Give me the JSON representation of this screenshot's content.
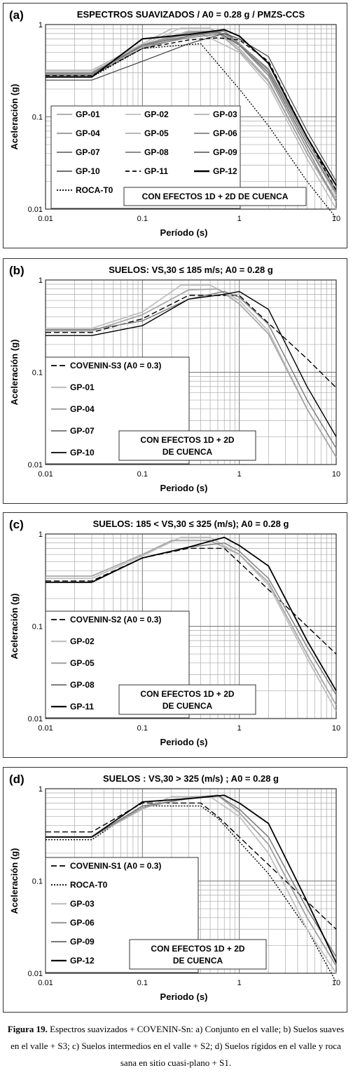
{
  "chart_data": [
    {
      "type": "line",
      "panel_label": "(a)",
      "title": "ESPECTROS SUAVIZADOS  / A0 = 0.28 g /  PMZS-CCS",
      "xlabel": "Período (s)",
      "ylabel": "Aceleración (g)",
      "xscale": "log",
      "yscale": "log",
      "xlim": [
        0.01,
        10
      ],
      "ylim": [
        0.01,
        1
      ],
      "xticks": [
        "0.01",
        "0.1",
        "1",
        "10"
      ],
      "yticks": [
        "1",
        "0.1",
        "0.01"
      ],
      "grid": true,
      "annotation": "CON EFECTOS 1D +  2D DE CUENCA",
      "legend_placement": "lower-left",
      "series": [
        {
          "name": "GP-01",
          "color": "#b0b0b0",
          "dash": "solid",
          "width": 1.6,
          "x": [
            0.01,
            0.03,
            0.1,
            0.3,
            0.6,
            1,
            2,
            5,
            10
          ],
          "y": [
            0.3,
            0.3,
            0.6,
            0.85,
            0.85,
            0.55,
            0.25,
            0.04,
            0.013
          ]
        },
        {
          "name": "GP-02",
          "color": "#c8c8c8",
          "dash": "solid",
          "width": 1.6,
          "x": [
            0.01,
            0.03,
            0.1,
            0.25,
            0.5,
            1,
            2,
            5,
            10
          ],
          "y": [
            0.31,
            0.31,
            0.6,
            0.92,
            0.92,
            0.6,
            0.28,
            0.045,
            0.012
          ]
        },
        {
          "name": "GP-03",
          "color": "#bcbcbc",
          "dash": "solid",
          "width": 1.6,
          "x": [
            0.01,
            0.03,
            0.1,
            0.2,
            0.4,
            1,
            2,
            5,
            10
          ],
          "y": [
            0.3,
            0.3,
            0.55,
            0.8,
            0.8,
            0.5,
            0.22,
            0.035,
            0.01
          ]
        },
        {
          "name": "GP-04",
          "color": "#a0a0a0",
          "dash": "solid",
          "width": 1.6,
          "x": [
            0.01,
            0.03,
            0.1,
            0.3,
            0.6,
            1,
            2,
            5,
            10
          ],
          "y": [
            0.29,
            0.29,
            0.58,
            0.8,
            0.82,
            0.52,
            0.24,
            0.04,
            0.012
          ]
        },
        {
          "name": "GP-05",
          "color": "#b8b8b8",
          "dash": "solid",
          "width": 1.6,
          "x": [
            0.01,
            0.03,
            0.1,
            0.2,
            0.5,
            1,
            2,
            5,
            10
          ],
          "y": [
            0.32,
            0.32,
            0.62,
            0.9,
            0.9,
            0.62,
            0.3,
            0.05,
            0.014
          ]
        },
        {
          "name": "GP-06",
          "color": "#909090",
          "dash": "solid",
          "width": 1.6,
          "x": [
            0.01,
            0.03,
            0.1,
            0.3,
            0.6,
            1,
            2,
            5,
            10
          ],
          "y": [
            0.3,
            0.3,
            0.6,
            0.82,
            0.85,
            0.6,
            0.28,
            0.045,
            0.012
          ]
        },
        {
          "name": "GP-07",
          "color": "#808080",
          "dash": "solid",
          "width": 1.6,
          "x": [
            0.01,
            0.03,
            0.1,
            0.3,
            0.7,
            1,
            2,
            5,
            10
          ],
          "y": [
            0.28,
            0.28,
            0.55,
            0.75,
            0.85,
            0.62,
            0.32,
            0.055,
            0.016
          ]
        },
        {
          "name": "GP-08",
          "color": "#8c8c8c",
          "dash": "solid",
          "width": 1.6,
          "x": [
            0.01,
            0.03,
            0.1,
            0.3,
            0.7,
            1,
            2,
            5,
            10
          ],
          "y": [
            0.3,
            0.3,
            0.58,
            0.72,
            0.8,
            0.62,
            0.33,
            0.06,
            0.018
          ]
        },
        {
          "name": "GP-09",
          "color": "#787878",
          "dash": "solid",
          "width": 1.6,
          "x": [
            0.01,
            0.03,
            0.1,
            0.3,
            0.6,
            1,
            2,
            5,
            10
          ],
          "y": [
            0.29,
            0.29,
            0.6,
            0.75,
            0.82,
            0.6,
            0.3,
            0.05,
            0.015
          ]
        },
        {
          "name": "GP-10",
          "color": "#404040",
          "dash": "solid",
          "width": 1.2,
          "x": [
            0.01,
            0.03,
            0.1,
            0.3,
            0.7,
            1,
            2,
            5,
            10
          ],
          "y": [
            0.25,
            0.25,
            0.4,
            0.62,
            0.8,
            0.7,
            0.45,
            0.07,
            0.02
          ]
        },
        {
          "name": "GP-11",
          "color": "#000000",
          "dash": "6,4",
          "width": 1.4,
          "x": [
            0.01,
            0.03,
            0.1,
            0.3,
            0.6,
            1,
            2,
            5,
            10
          ],
          "y": [
            0.28,
            0.28,
            0.55,
            0.68,
            0.72,
            0.68,
            0.4,
            0.06,
            0.016
          ]
        },
        {
          "name": "GP-12",
          "color": "#000000",
          "dash": "solid",
          "width": 2,
          "x": [
            0.01,
            0.03,
            0.1,
            0.3,
            0.7,
            1,
            2,
            5,
            10
          ],
          "y": [
            0.27,
            0.27,
            0.7,
            0.78,
            0.88,
            0.75,
            0.38,
            0.06,
            0.018
          ]
        },
        {
          "name": "ROCA-T0",
          "color": "#000000",
          "dash": "2,2",
          "width": 1.3,
          "x": [
            0.01,
            0.03,
            0.1,
            0.4,
            1,
            2,
            5,
            10
          ],
          "y": [
            0.27,
            0.27,
            0.55,
            0.62,
            0.2,
            0.08,
            0.02,
            0.008
          ]
        }
      ]
    },
    {
      "type": "line",
      "panel_label": "(b)",
      "title": "SUELOS: VS,30 ≤ 185 m/s;  A0 = 0.28 g",
      "xlabel": "Periodo (s)",
      "ylabel": "Aceleración (g)",
      "xscale": "log",
      "yscale": "log",
      "xlim": [
        0.01,
        10
      ],
      "ylim": [
        0.01,
        1
      ],
      "xticks": [
        "0.01",
        "0.1",
        "1",
        "10"
      ],
      "yticks": [
        "1",
        "0.1",
        "0.01"
      ],
      "grid": true,
      "annotation": "CON EFECTOS 1D + 2D DE CUENCA",
      "legend_placement": "lower-left",
      "series": [
        {
          "name": "COVENIN-S3 (A0 = 0.3)",
          "color": "#000000",
          "dash": "8,4",
          "width": 1.4,
          "x": [
            0.01,
            0.03,
            0.1,
            0.3,
            1,
            2,
            5,
            10
          ],
          "y": [
            0.27,
            0.27,
            0.38,
            0.68,
            0.68,
            0.34,
            0.14,
            0.068
          ]
        },
        {
          "name": "GP-01",
          "color": "#c0c0c0",
          "dash": "solid",
          "width": 1.8,
          "x": [
            0.01,
            0.03,
            0.1,
            0.25,
            0.5,
            1,
            2,
            5,
            10
          ],
          "y": [
            0.3,
            0.3,
            0.45,
            0.88,
            0.88,
            0.6,
            0.28,
            0.04,
            0.012
          ]
        },
        {
          "name": "GP-04",
          "color": "#a8a8a8",
          "dash": "solid",
          "width": 1.8,
          "x": [
            0.01,
            0.03,
            0.1,
            0.3,
            0.6,
            1,
            2,
            5,
            10
          ],
          "y": [
            0.28,
            0.28,
            0.42,
            0.78,
            0.8,
            0.55,
            0.26,
            0.04,
            0.012
          ]
        },
        {
          "name": "GP-07",
          "color": "#808080",
          "dash": "solid",
          "width": 1.5,
          "x": [
            0.01,
            0.03,
            0.1,
            0.3,
            0.7,
            1,
            2,
            5,
            10
          ],
          "y": [
            0.29,
            0.29,
            0.36,
            0.62,
            0.75,
            0.65,
            0.33,
            0.05,
            0.015
          ]
        },
        {
          "name": "GP-10",
          "color": "#000000",
          "dash": "solid",
          "width": 1.4,
          "x": [
            0.01,
            0.03,
            0.1,
            0.3,
            0.7,
            1,
            2,
            5,
            10
          ],
          "y": [
            0.25,
            0.25,
            0.32,
            0.62,
            0.7,
            0.75,
            0.48,
            0.07,
            0.02
          ]
        }
      ]
    },
    {
      "type": "line",
      "panel_label": "(c)",
      "title": "SUELOS:  185 < VS,30 ≤ 325 (m/s);  A0 = 0.28 g",
      "xlabel": "Periodo (s)",
      "ylabel": "Aceleración (g)",
      "xscale": "log",
      "yscale": "log",
      "xlim": [
        0.01,
        10
      ],
      "ylim": [
        0.01,
        1
      ],
      "xticks": [
        "0.01",
        "0.1",
        "1",
        "10"
      ],
      "yticks": [
        "1",
        "0.1",
        "0.01"
      ],
      "grid": true,
      "annotation": "CON EFECTOS 1D + 2D DE CUENCA",
      "legend_placement": "lower-left",
      "series": [
        {
          "name": "COVENIN-S2 (A0 = 0.3)",
          "color": "#000000",
          "dash": "8,4",
          "width": 1.4,
          "x": [
            0.01,
            0.03,
            0.1,
            0.3,
            0.7,
            2,
            5,
            10
          ],
          "y": [
            0.31,
            0.31,
            0.55,
            0.7,
            0.7,
            0.25,
            0.1,
            0.05
          ]
        },
        {
          "name": "GP-02",
          "color": "#c0c0c0",
          "dash": "solid",
          "width": 1.8,
          "x": [
            0.01,
            0.03,
            0.1,
            0.25,
            0.5,
            1,
            2,
            5,
            10
          ],
          "y": [
            0.33,
            0.33,
            0.58,
            0.92,
            0.92,
            0.6,
            0.28,
            0.045,
            0.012
          ]
        },
        {
          "name": "GP-05",
          "color": "#a8a8a8",
          "dash": "solid",
          "width": 1.8,
          "x": [
            0.01,
            0.03,
            0.1,
            0.2,
            0.5,
            1,
            2,
            5,
            10
          ],
          "y": [
            0.35,
            0.35,
            0.6,
            0.85,
            0.85,
            0.6,
            0.3,
            0.05,
            0.014
          ]
        },
        {
          "name": "GP-08",
          "color": "#808080",
          "dash": "solid",
          "width": 1.5,
          "x": [
            0.01,
            0.03,
            0.1,
            0.3,
            0.7,
            1,
            2,
            5,
            10
          ],
          "y": [
            0.3,
            0.3,
            0.55,
            0.72,
            0.8,
            0.65,
            0.33,
            0.06,
            0.018
          ]
        },
        {
          "name": "GP-11",
          "color": "#000000",
          "dash": "solid",
          "width": 1.8,
          "x": [
            0.01,
            0.03,
            0.1,
            0.3,
            0.7,
            1,
            2,
            5,
            10
          ],
          "y": [
            0.3,
            0.3,
            0.55,
            0.72,
            0.92,
            0.75,
            0.45,
            0.07,
            0.02
          ]
        }
      ]
    },
    {
      "type": "line",
      "panel_label": "(d)",
      "title": "SUELOS :  VS,30 > 325 (m/s) ;  A0 = 0.28 g",
      "xlabel": "Periodo (s)",
      "ylabel": "Aceleración (g)",
      "xscale": "log",
      "yscale": "log",
      "xlim": [
        0.01,
        10
      ],
      "ylim": [
        0.01,
        1
      ],
      "xticks": [
        "0.01",
        "0.1",
        "1",
        "10"
      ],
      "yticks": [
        "1",
        "0.1",
        "0.01"
      ],
      "grid": true,
      "annotation": "CON EFECTOS 1D + 2D DE CUENCA",
      "legend_placement": "lower-left",
      "series": [
        {
          "name": "COVENIN-S1 (A0 = 0.3)",
          "color": "#000000",
          "dash": "8,4",
          "width": 1.4,
          "x": [
            0.01,
            0.03,
            0.1,
            0.4,
            0.6,
            2,
            5,
            10
          ],
          "y": [
            0.34,
            0.34,
            0.7,
            0.7,
            0.5,
            0.15,
            0.06,
            0.03
          ]
        },
        {
          "name": "ROCA-T0",
          "color": "#000000",
          "dash": "2,2",
          "width": 1.4,
          "x": [
            0.01,
            0.03,
            0.1,
            0.4,
            0.6,
            2,
            5,
            10
          ],
          "y": [
            0.28,
            0.28,
            0.65,
            0.65,
            0.48,
            0.12,
            0.03,
            0.008
          ]
        },
        {
          "name": "GP-03",
          "color": "#c0c0c0",
          "dash": "solid",
          "width": 1.8,
          "x": [
            0.01,
            0.03,
            0.1,
            0.2,
            0.5,
            1,
            2,
            5,
            10
          ],
          "y": [
            0.3,
            0.3,
            0.6,
            0.82,
            0.82,
            0.5,
            0.2,
            0.03,
            0.01
          ]
        },
        {
          "name": "GP-06",
          "color": "#a0a0a0",
          "dash": "solid",
          "width": 1.8,
          "x": [
            0.01,
            0.03,
            0.1,
            0.3,
            0.6,
            1,
            2,
            5,
            10
          ],
          "y": [
            0.3,
            0.3,
            0.62,
            0.8,
            0.85,
            0.55,
            0.25,
            0.04,
            0.012
          ]
        },
        {
          "name": "GP-09",
          "color": "#787878",
          "dash": "solid",
          "width": 1.5,
          "x": [
            0.01,
            0.03,
            0.1,
            0.3,
            0.6,
            1,
            2,
            5,
            10
          ],
          "y": [
            0.3,
            0.3,
            0.65,
            0.78,
            0.85,
            0.6,
            0.3,
            0.05,
            0.015
          ]
        },
        {
          "name": "GP-12",
          "color": "#000000",
          "dash": "solid",
          "width": 1.8,
          "x": [
            0.01,
            0.03,
            0.1,
            0.3,
            0.7,
            1,
            2,
            5,
            10
          ],
          "y": [
            0.3,
            0.3,
            0.72,
            0.78,
            0.85,
            0.7,
            0.42,
            0.06,
            0.013
          ]
        }
      ]
    }
  ],
  "caption": {
    "figure_label": "Figura 19.",
    "text": "Espectros suavizados + COVENIN-Sn: a) Conjunto en el valle; b) Suelos suaves en el valle + S3; c) Suelos intermedios en el valle + S2; d) Suelos rígidos en el valle y roca sana en sitio cuasi-plano + S1."
  }
}
